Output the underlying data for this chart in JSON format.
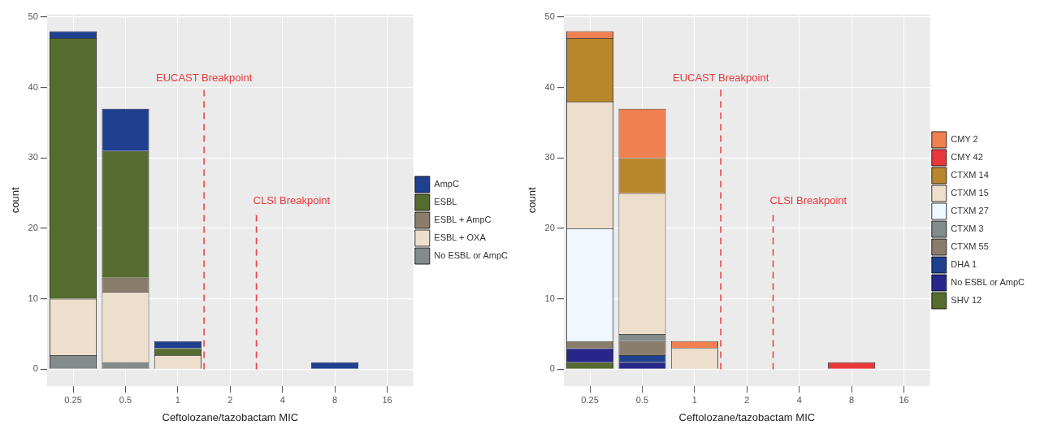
{
  "chart_data": [
    {
      "type": "bar",
      "stacked": true,
      "xlabel": "Ceftolozane/tazobactam MIC",
      "ylabel": "count",
      "categories": [
        "0.25",
        "0.5",
        "1",
        "2",
        "4",
        "8",
        "16"
      ],
      "ylim": [
        -2.4,
        50.4
      ],
      "yticks": [
        0,
        10,
        20,
        30,
        40,
        50
      ],
      "grid": true,
      "legend": "right",
      "series": [
        {
          "name": "No ESBL or AmpC",
          "color": "#838b8b",
          "values": [
            2,
            1,
            0,
            0,
            0,
            0,
            0
          ]
        },
        {
          "name": "ESBL + OXA",
          "color": "#eedfcc",
          "values": [
            8,
            10,
            2,
            0,
            0,
            0,
            0
          ]
        },
        {
          "name": "ESBL + AmpC",
          "color": "#8b7d6b",
          "values": [
            0,
            2,
            0,
            0,
            0,
            0,
            0
          ]
        },
        {
          "name": "ESBL",
          "color": "#556b2f",
          "values": [
            37,
            18,
            1,
            0,
            0,
            0,
            0
          ]
        },
        {
          "name": "AmpC",
          "color": "#1f3f8f",
          "values": [
            1,
            6,
            1,
            0,
            0,
            1,
            0
          ]
        }
      ],
      "annotations": [
        "EUCAST Breakpoint",
        "CLSI Breakpoint"
      ]
    },
    {
      "type": "bar",
      "stacked": true,
      "xlabel": "Ceftolozane/tazobactam MIC",
      "ylabel": "count",
      "categories": [
        "0.25",
        "0.5",
        "1",
        "2",
        "4",
        "8",
        "16"
      ],
      "ylim": [
        -2.4,
        50.4
      ],
      "yticks": [
        0,
        10,
        20,
        30,
        40,
        50
      ],
      "grid": true,
      "legend": "right",
      "series": [
        {
          "name": "SHV 12",
          "color": "#556b2f",
          "values": [
            1,
            0,
            0,
            0,
            0,
            0,
            0
          ]
        },
        {
          "name": "No ESBL or AmpC",
          "color": "#27278b",
          "values": [
            2,
            1,
            0,
            0,
            0,
            0,
            0
          ]
        },
        {
          "name": "DHA 1",
          "color": "#1f3f8f",
          "values": [
            0,
            1,
            0,
            0,
            0,
            0,
            0
          ]
        },
        {
          "name": "CTXM 55",
          "color": "#8b7d6b",
          "values": [
            1,
            2,
            0,
            0,
            0,
            0,
            0
          ]
        },
        {
          "name": "CTXM 3",
          "color": "#838b8b",
          "values": [
            0,
            1,
            0,
            0,
            0,
            0,
            0
          ]
        },
        {
          "name": "CTXM 27",
          "color": "#f0f8ff",
          "values": [
            16,
            0,
            0,
            0,
            0,
            0,
            0
          ]
        },
        {
          "name": "CTXM 15",
          "color": "#eedfcc",
          "values": [
            18,
            20,
            3,
            0,
            0,
            0,
            0
          ]
        },
        {
          "name": "CTXM 14",
          "color": "#b8862b",
          "values": [
            9,
            5,
            0,
            0,
            0,
            0,
            0
          ]
        },
        {
          "name": "CMY 42",
          "color": "#e8383d",
          "values": [
            0,
            0,
            0,
            0,
            0,
            1,
            0
          ]
        },
        {
          "name": "CMY 2",
          "color": "#f08050",
          "values": [
            1,
            7,
            1,
            0,
            0,
            0,
            0
          ]
        }
      ],
      "annotations": [
        "EUCAST Breakpoint",
        "CLSI Breakpoint"
      ]
    }
  ]
}
